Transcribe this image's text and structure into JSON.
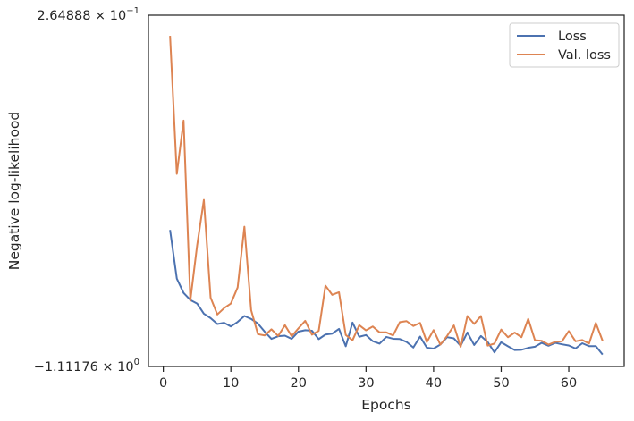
{
  "chart_data": {
    "type": "line",
    "xlabel": "Epochs",
    "ylabel": "Negative log-likelihood",
    "xlim": [
      -2.2,
      68.2
    ],
    "ylim": [
      -1.11176,
      0.264888
    ],
    "ylim_labels": {
      "top": {
        "mantissa": "2.64888 × 10",
        "exponent": "−1"
      },
      "bottom": {
        "mantissa": "−1.11176 × 10",
        "exponent": "0"
      }
    },
    "x_ticks": [
      0,
      10,
      20,
      30,
      40,
      50,
      60
    ],
    "x_tick_labels": [
      "0",
      "10",
      "20",
      "30",
      "40",
      "50",
      "60"
    ],
    "log_scale_y": true,
    "grid": false,
    "legend_placement": "top-right",
    "series": [
      {
        "name": "Loss",
        "color": "#4c72b0",
        "x": [
          1,
          2,
          3,
          4,
          5,
          6,
          7,
          8,
          9,
          10,
          11,
          12,
          13,
          14,
          15,
          16,
          17,
          18,
          19,
          20,
          21,
          22,
          23,
          24,
          25,
          26,
          27,
          28,
          29,
          30,
          31,
          32,
          33,
          34,
          35,
          36,
          37,
          38,
          39,
          40,
          41,
          42,
          43,
          44,
          45,
          46,
          47,
          48,
          49,
          50,
          51,
          52,
          53,
          54,
          55,
          56,
          57,
          58,
          59,
          60,
          61,
          62,
          63,
          64,
          65
        ],
        "values": [
          -0.5768,
          -0.7672,
          -0.8233,
          -0.8512,
          -0.8652,
          -0.9049,
          -0.9221,
          -0.9454,
          -0.9406,
          -0.9548,
          -0.9372,
          -0.9138,
          -0.9254,
          -0.9436,
          -0.9752,
          -1.0034,
          -0.9932,
          -0.991,
          -1.0034,
          -0.975,
          -0.9694,
          -0.9715,
          -1.0045,
          -0.9865,
          -0.983,
          -0.9643,
          -1.0326,
          -0.9396,
          -0.9952,
          -0.9885,
          -1.0126,
          -1.0223,
          -0.996,
          -1.003,
          -1.0042,
          -1.0155,
          -1.0374,
          -0.9945,
          -1.0383,
          -1.0417,
          -1.0257,
          -0.9968,
          -1.0015,
          -1.0307,
          -0.9784,
          -1.0275,
          -0.9923,
          -1.0157,
          -1.0565,
          -1.0167,
          -1.0326,
          -1.0474,
          -1.0464,
          -1.0388,
          -1.0344,
          -1.019,
          -1.0304,
          -1.019,
          -1.0248,
          -1.0294,
          -1.0413,
          -1.0206,
          -1.0321,
          -1.0322,
          -1.0648
        ]
      },
      {
        "name": "Val. loss",
        "color": "#dd8452",
        "x": [
          1,
          2,
          3,
          4,
          5,
          6,
          7,
          8,
          9,
          10,
          11,
          12,
          13,
          14,
          15,
          16,
          17,
          18,
          19,
          20,
          21,
          22,
          23,
          24,
          25,
          26,
          27,
          28,
          29,
          30,
          31,
          32,
          33,
          34,
          35,
          36,
          37,
          38,
          39,
          40,
          41,
          42,
          43,
          44,
          45,
          46,
          47,
          48,
          49,
          50,
          51,
          52,
          53,
          54,
          55,
          56,
          57,
          58,
          59,
          60,
          61,
          62,
          63,
          64,
          65
        ],
        "values": [
          0.184,
          -0.357,
          -0.148,
          -0.854,
          -0.638,
          -0.459,
          -0.842,
          -0.908,
          -0.883,
          -0.865,
          -0.802,
          -0.564,
          -0.891,
          -0.985,
          -0.99,
          -0.966,
          -0.992,
          -0.95,
          -0.993,
          -0.962,
          -0.933,
          -0.987,
          -0.972,
          -0.795,
          -0.831,
          -0.821,
          -0.988,
          -1.009,
          -0.95,
          -0.97,
          -0.955,
          -0.978,
          -0.978,
          -0.99,
          -0.938,
          -0.934,
          -0.953,
          -0.941,
          -1.016,
          -0.969,
          -1.026,
          -0.992,
          -0.951,
          -1.035,
          -0.914,
          -0.945,
          -0.914,
          -1.03,
          -1.022,
          -0.967,
          -0.997,
          -0.979,
          -0.997,
          -0.925,
          -1.009,
          -1.011,
          -1.026,
          -1.015,
          -1.013,
          -0.973,
          -1.013,
          -1.008,
          -1.022,
          -0.941,
          -1.011
        ]
      }
    ]
  }
}
